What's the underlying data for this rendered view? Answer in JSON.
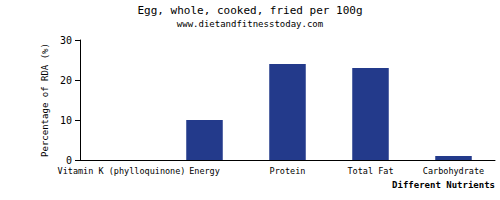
{
  "chart_data": {
    "type": "bar",
    "title": "Egg, whole, cooked, fried per 100g",
    "subtitle": "www.dietandfitnesstoday.com",
    "x_label": "Different Nutrients",
    "y_label": "Percentage of RDA (%)",
    "categories": [
      "Vitamin K (phylloquinone)",
      "Energy",
      "Protein",
      "Total Fat",
      "Carbohydrate"
    ],
    "values": [
      0,
      10,
      24,
      23,
      1
    ],
    "color": "#233a8b",
    "ylim": [
      0,
      30
    ],
    "yticks": [
      0,
      10,
      20,
      30
    ],
    "grid": false
  }
}
